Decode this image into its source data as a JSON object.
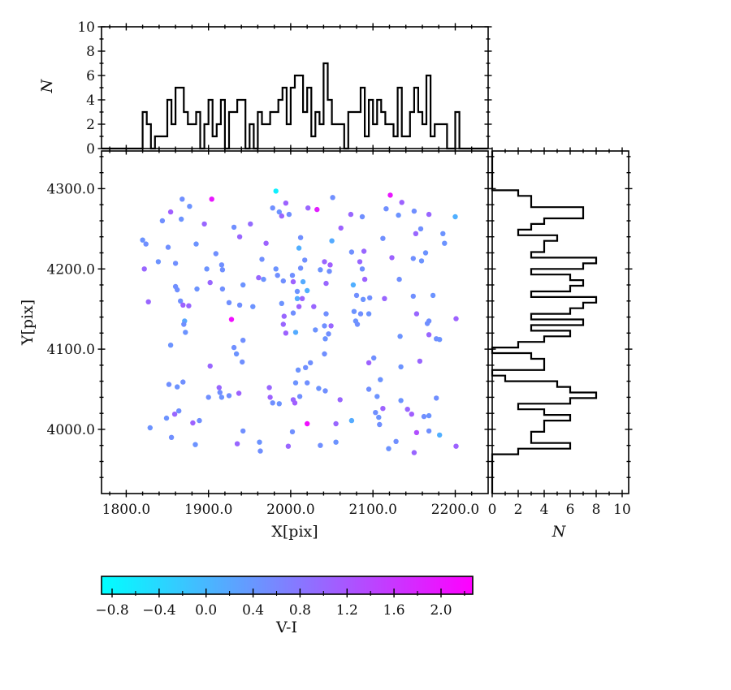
{
  "figure_title": "",
  "chart_data": {
    "type": "scatter_with_marginal_histograms",
    "scatter": {
      "type": "scatter",
      "xlabel": "X[pix]",
      "ylabel": "Y[pix]",
      "xlim": [
        1770,
        2240
      ],
      "ylim": [
        3920,
        4347
      ],
      "x_tick_values": [
        1800,
        1900,
        2000,
        2100,
        2200
      ],
      "x_tick_labels": [
        "1800.0",
        "1900.0",
        "2000.0",
        "2100.0",
        "2200.0"
      ],
      "x_minor_step": 20,
      "y_tick_values": [
        4300,
        4200,
        4100,
        4000
      ],
      "y_tick_labels": [
        "4300.0",
        "4200.0",
        "4100.0",
        "4000.0"
      ],
      "y_minor_step": 20,
      "color_by": "V-I",
      "marker_radius_px": 3.2,
      "points": [
        [
          1868,
          4287,
          0.5
        ],
        [
          1904,
          4287,
          2.0
        ],
        [
          1877,
          4278,
          0.45
        ],
        [
          1982,
          4297,
          -0.7
        ],
        [
          1854,
          4271,
          1.1
        ],
        [
          1994,
          4282,
          1.05
        ],
        [
          1978,
          4276,
          0.5
        ],
        [
          1986,
          4271,
          0.45
        ],
        [
          1989,
          4266,
          1.0
        ],
        [
          1998,
          4268,
          0.5
        ],
        [
          1844,
          4260,
          0.5
        ],
        [
          1867,
          4262,
          0.45
        ],
        [
          1895,
          4256,
          1.0
        ],
        [
          1931,
          4252,
          0.5
        ],
        [
          1951,
          4256,
          0.95
        ],
        [
          1938,
          4240,
          1.0
        ],
        [
          1820,
          4236,
          0.45
        ],
        [
          1824,
          4231,
          0.5
        ],
        [
          1970,
          4232,
          1.05
        ],
        [
          1851,
          4227,
          0.5
        ],
        [
          1885,
          4231,
          0.45
        ],
        [
          1909,
          4219,
          0.5
        ],
        [
          1965,
          4212,
          0.5
        ],
        [
          1839,
          4209,
          0.45
        ],
        [
          1860,
          4207,
          0.5
        ],
        [
          1822,
          4200,
          1.0
        ],
        [
          1898,
          4200,
          0.45
        ],
        [
          1916,
          4205,
          0.5
        ],
        [
          1917,
          4199,
          0.5
        ],
        [
          1982,
          4200,
          0.45
        ],
        [
          1984,
          4192,
          0.5
        ],
        [
          1961,
          4189,
          1.0
        ],
        [
          1967,
          4187,
          0.45
        ],
        [
          1991,
          4185,
          0.5
        ],
        [
          2002,
          4192,
          0.5
        ],
        [
          2003,
          4184,
          1.05
        ],
        [
          1860,
          4178,
          0.5
        ],
        [
          1902,
          4183,
          1.0
        ],
        [
          1886,
          4175,
          0.45
        ],
        [
          1917,
          4175,
          0.5
        ],
        [
          1942,
          4180,
          0.45
        ],
        [
          1862,
          4174,
          0.5
        ],
        [
          1938,
          4155,
          0.5
        ],
        [
          1954,
          4153,
          0.45
        ],
        [
          1827,
          4159,
          1.0
        ],
        [
          1866,
          4160,
          0.5
        ],
        [
          1869,
          4155,
          1.05
        ],
        [
          1876,
          4154,
          1.0
        ],
        [
          1925,
          4158,
          0.5
        ],
        [
          1989,
          4157,
          0.45
        ],
        [
          1992,
          4141,
          1.0
        ],
        [
          2003,
          4145,
          0.5
        ],
        [
          1928,
          4137,
          2.1
        ],
        [
          1871,
          4135,
          0.2
        ],
        [
          2051,
          4289,
          0.5
        ],
        [
          2121,
          4292,
          2.0
        ],
        [
          2021,
          4276,
          1.0
        ],
        [
          2032,
          4274,
          1.9
        ],
        [
          2135,
          4283,
          1.05
        ],
        [
          2116,
          4275,
          0.5
        ],
        [
          2131,
          4267,
          0.45
        ],
        [
          2150,
          4272,
          0.5
        ],
        [
          2168,
          4268,
          1.0
        ],
        [
          2200,
          4265,
          0.1
        ],
        [
          2073,
          4268,
          1.0
        ],
        [
          2087,
          4265,
          0.5
        ],
        [
          2061,
          4251,
          1.05
        ],
        [
          2158,
          4250,
          0.5
        ],
        [
          2152,
          4244,
          1.0
        ],
        [
          2185,
          4244,
          0.45
        ],
        [
          2012,
          4239,
          0.5
        ],
        [
          2050,
          4235,
          0.15
        ],
        [
          2112,
          4238,
          0.5
        ],
        [
          2187,
          4232,
          0.45
        ],
        [
          2010,
          4226,
          0.1
        ],
        [
          2074,
          4221,
          0.5
        ],
        [
          2089,
          4222,
          1.0
        ],
        [
          2164,
          4220,
          0.45
        ],
        [
          2123,
          4214,
          1.05
        ],
        [
          2017,
          4211,
          0.5
        ],
        [
          2149,
          4213,
          0.5
        ],
        [
          2159,
          4210,
          0.45
        ],
        [
          2041,
          4209,
          1.0
        ],
        [
          2048,
          4205,
          1.1
        ],
        [
          2012,
          4201,
          0.5
        ],
        [
          2036,
          4199,
          0.45
        ],
        [
          2047,
          4197,
          0.5
        ],
        [
          2084,
          4209,
          1.0
        ],
        [
          2087,
          4200,
          0.5
        ],
        [
          2090,
          4187,
          1.05
        ],
        [
          2043,
          4182,
          1.0
        ],
        [
          2015,
          4184,
          0.15
        ],
        [
          2076,
          4180,
          0.1
        ],
        [
          2132,
          4187,
          0.5
        ],
        [
          2008,
          4172,
          0.45
        ],
        [
          2020,
          4173,
          0.1
        ],
        [
          2008,
          4163,
          0.15
        ],
        [
          2014,
          4163,
          1.0
        ],
        [
          2080,
          4167,
          0.5
        ],
        [
          2088,
          4162,
          0.45
        ],
        [
          2096,
          4164,
          0.5
        ],
        [
          2114,
          4163,
          1.0
        ],
        [
          2149,
          4166,
          0.5
        ],
        [
          2173,
          4167,
          0.45
        ],
        [
          2010,
          4153,
          1.05
        ],
        [
          2028,
          4153,
          1.0
        ],
        [
          2043,
          4144,
          0.5
        ],
        [
          2077,
          4147,
          0.45
        ],
        [
          2085,
          4144,
          0.5
        ],
        [
          2095,
          4144,
          0.45
        ],
        [
          2153,
          4144,
          1.0
        ],
        [
          2201,
          4138,
          1.05
        ],
        [
          2168,
          4135,
          0.5
        ],
        [
          2079,
          4135,
          0.45
        ],
        [
          1870,
          4131,
          0.5
        ],
        [
          1872,
          4121,
          0.45
        ],
        [
          1991,
          4131,
          1.0
        ],
        [
          1994,
          4120,
          1.05
        ],
        [
          2006,
          4121,
          0.15
        ],
        [
          1942,
          4111,
          0.5
        ],
        [
          1854,
          4105,
          0.45
        ],
        [
          1931,
          4102,
          0.5
        ],
        [
          1934,
          4094,
          0.45
        ],
        [
          1941,
          4084,
          0.5
        ],
        [
          1902,
          4079,
          1.0
        ],
        [
          1852,
          4056,
          0.5
        ],
        [
          1862,
          4053,
          0.45
        ],
        [
          1869,
          4059,
          0.5
        ],
        [
          1913,
          4052,
          1.0
        ],
        [
          1914,
          4046,
          0.5
        ],
        [
          1916,
          4040,
          0.45
        ],
        [
          1925,
          4042,
          0.5
        ],
        [
          1937,
          4045,
          1.05
        ],
        [
          1900,
          4040,
          0.5
        ],
        [
          1974,
          4052,
          1.0
        ],
        [
          1975,
          4040,
          1.05
        ],
        [
          1978,
          4033,
          0.5
        ],
        [
          1986,
          4032,
          0.45
        ],
        [
          2003,
          4037,
          1.0
        ],
        [
          2005,
          4033,
          1.1
        ],
        [
          1864,
          4023,
          0.5
        ],
        [
          1859,
          4019,
          1.0
        ],
        [
          1849,
          4014,
          0.45
        ],
        [
          1881,
          4008,
          1.05
        ],
        [
          1889,
          4011,
          0.5
        ],
        [
          1829,
          4002,
          0.45
        ],
        [
          1855,
          3990,
          0.5
        ],
        [
          1884,
          3981,
          0.45
        ],
        [
          1935,
          3982,
          1.0
        ],
        [
          1942,
          3998,
          0.5
        ],
        [
          1962,
          3984,
          0.45
        ],
        [
          1963,
          3973,
          0.5
        ],
        [
          1997,
          3979,
          1.0
        ],
        [
          2002,
          3997,
          0.5
        ],
        [
          2041,
          4129,
          0.5
        ],
        [
          2049,
          4129,
          1.0
        ],
        [
          2030,
          4124,
          0.45
        ],
        [
          2046,
          4119,
          0.5
        ],
        [
          2042,
          4113,
          0.45
        ],
        [
          2081,
          4131,
          0.5
        ],
        [
          2133,
          4116,
          0.45
        ],
        [
          2166,
          4132,
          0.5
        ],
        [
          2168,
          4118,
          1.0
        ],
        [
          2177,
          4113,
          0.5
        ],
        [
          2181,
          4112,
          0.45
        ],
        [
          2041,
          4094,
          0.5
        ],
        [
          2095,
          4083,
          1.05
        ],
        [
          2101,
          4089,
          0.5
        ],
        [
          2157,
          4085,
          1.0
        ],
        [
          2134,
          4078,
          0.45
        ],
        [
          2024,
          4083,
          0.5
        ],
        [
          2009,
          4074,
          0.45
        ],
        [
          2018,
          4077,
          0.5
        ],
        [
          2006,
          4058,
          0.45
        ],
        [
          2020,
          4058,
          0.5
        ],
        [
          2034,
          4051,
          0.45
        ],
        [
          2042,
          4048,
          0.5
        ],
        [
          2109,
          4062,
          0.45
        ],
        [
          2095,
          4050,
          0.5
        ],
        [
          2105,
          4041,
          0.45
        ],
        [
          2060,
          4037,
          1.0
        ],
        [
          2011,
          4041,
          0.5
        ],
        [
          2134,
          4036,
          0.45
        ],
        [
          2177,
          4039,
          0.5
        ],
        [
          2103,
          4021,
          0.5
        ],
        [
          2112,
          4026,
          1.05
        ],
        [
          2107,
          4015,
          0.45
        ],
        [
          2142,
          4025,
          1.0
        ],
        [
          2147,
          4019,
          1.1
        ],
        [
          2162,
          4016,
          0.5
        ],
        [
          2168,
          4017,
          0.45
        ],
        [
          2020,
          4007,
          2.1
        ],
        [
          2055,
          4007,
          1.0
        ],
        [
          2074,
          4011,
          0.15
        ],
        [
          2108,
          4006,
          0.5
        ],
        [
          2153,
          3996,
          1.3
        ],
        [
          2168,
          3998,
          0.5
        ],
        [
          2181,
          3993,
          0.1
        ],
        [
          2036,
          3980,
          0.5
        ],
        [
          2055,
          3984,
          0.45
        ],
        [
          2128,
          3985,
          0.5
        ],
        [
          2119,
          3976,
          0.45
        ],
        [
          2150,
          3971,
          1.0
        ],
        [
          2201,
          3979,
          1.05
        ]
      ]
    },
    "top_histogram": {
      "type": "histogram",
      "orientation": "vertical",
      "ylabel": "N",
      "ylim": [
        0,
        10
      ],
      "tick_values": [
        0,
        2,
        4,
        6,
        8,
        10
      ],
      "tick_labels": [
        "0",
        "2",
        "4",
        "6",
        "8",
        "10"
      ],
      "minor_tick_step": 1,
      "bin_width": 5,
      "derived_from": "scatter points x values"
    },
    "right_histogram": {
      "type": "histogram",
      "orientation": "horizontal",
      "xlabel": "N",
      "xlim": [
        0,
        10.5
      ],
      "tick_values": [
        0,
        2,
        4,
        6,
        8,
        10
      ],
      "tick_labels": [
        "0",
        "2",
        "4",
        "6",
        "8",
        "10"
      ],
      "minor_tick_step": 1,
      "bin_width": 7,
      "derived_from": "scatter points y values"
    },
    "colorbar": {
      "label": "V-I",
      "colormap": "cool",
      "color_start": "#00FFFF",
      "color_end": "#FF00FF",
      "vmin": -0.89,
      "vmax": 2.27,
      "tick_values": [
        -0.8,
        -0.4,
        0.0,
        0.4,
        0.8,
        1.2,
        1.6,
        2.0
      ],
      "tick_labels": [
        "−0.8",
        "−0.4",
        "0.0",
        "0.4",
        "0.8",
        "1.2",
        "1.6",
        "2.0"
      ],
      "minor_tick_step": 0.2
    },
    "style": {
      "line_color": "#000000",
      "background": "#ffffff",
      "histogram_line_width": 2.2,
      "spine_line_width": 1.6
    }
  }
}
